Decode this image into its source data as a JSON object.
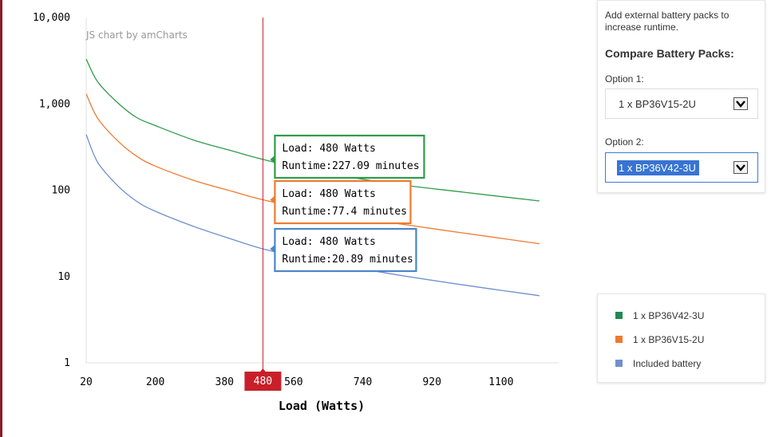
{
  "chart_data": {
    "type": "line",
    "credit": "JS chart by amCharts",
    "xlabel": "Load (Watts)",
    "x_ticks": [
      "20",
      "200",
      "380",
      "560",
      "740",
      "920",
      "1100"
    ],
    "y_ticks": [
      "10,000",
      "1,000",
      "100",
      "10",
      "1"
    ],
    "y_scale": "log",
    "ylim": [
      1,
      10000
    ],
    "xlim": [
      20,
      1250
    ],
    "cursor": {
      "x": 480,
      "label": "480"
    },
    "x": [
      20,
      50,
      100,
      150,
      200,
      300,
      400,
      480,
      600,
      800,
      1000,
      1200
    ],
    "series": [
      {
        "name": "1 x BP36V42-3U",
        "color": "#2e9c4a",
        "values": [
          3300,
          1800,
          1050,
          700,
          560,
          380,
          285,
          227.09,
          172,
          122,
          95,
          75
        ]
      },
      {
        "name": "1 x BP36V15-2U",
        "color": "#f07a30",
        "values": [
          1300,
          680,
          380,
          250,
          190,
          130,
          97,
          77.4,
          60,
          43,
          32,
          24
        ]
      },
      {
        "name": "Included battery",
        "color": "#6f8fd0",
        "values": [
          440,
          210,
          115,
          75,
          57,
          38,
          27,
          20.89,
          16,
          11,
          8,
          6
        ]
      }
    ],
    "tooltips": [
      {
        "load": "Load: 480 Watts",
        "runtime": "Runtime:227.09 minutes",
        "color": "#2e9c4a"
      },
      {
        "load": "Load: 480 Watts",
        "runtime": "Runtime:77.4 minutes",
        "color": "#f07a30"
      },
      {
        "load": "Load: 480 Watts",
        "runtime": "Runtime:20.89 minutes",
        "color": "#4a86c8"
      }
    ]
  },
  "panel": {
    "intro": "Add external battery packs to increase runtime.",
    "compare_title": "Compare Battery Packs:",
    "option1": {
      "label": "Option 1:",
      "value": "1 x BP36V15-2U"
    },
    "option2": {
      "label": "Option 2:",
      "value": "1 x BP36V42-3U"
    }
  },
  "legend": [
    {
      "label": "1 x BP36V42-3U",
      "color": "#1f8a52"
    },
    {
      "label": "1 x BP36V15-2U",
      "color": "#f07a30"
    },
    {
      "label": "Included battery",
      "color": "#6f8fd0"
    }
  ]
}
